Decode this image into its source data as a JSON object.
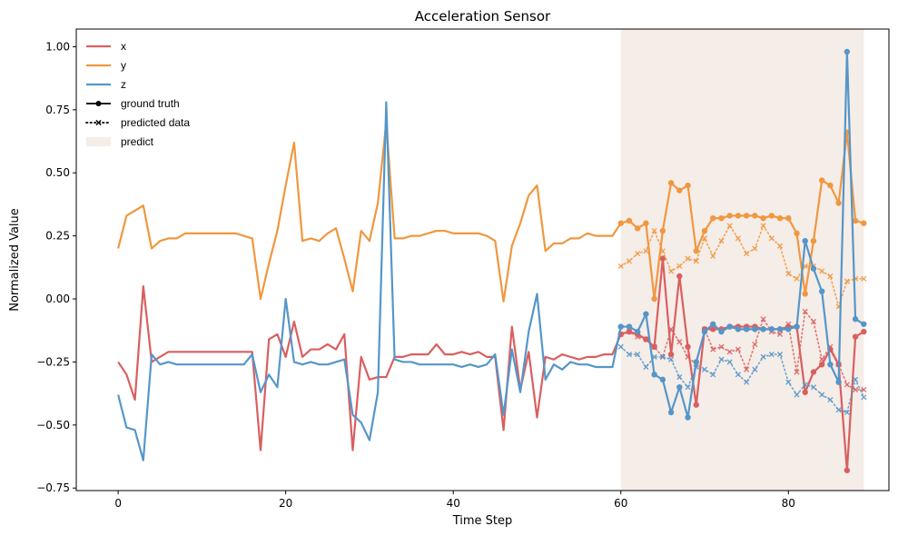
{
  "chart_data": {
    "type": "line",
    "title": "Acceleration Sensor",
    "xlabel": "Time Step",
    "ylabel": "Normalized Value",
    "xlim": [
      -5,
      92
    ],
    "ylim": [
      -0.76,
      1.07
    ],
    "xticks": [
      0,
      20,
      40,
      60,
      80
    ],
    "yticks": [
      -0.75,
      -0.5,
      -0.25,
      0.0,
      0.25,
      0.5,
      0.75,
      1.0
    ],
    "xtick_labels": [
      "0",
      "20",
      "40",
      "60",
      "80"
    ],
    "ytick_labels": [
      "−0.75",
      "−0.50",
      "−0.25",
      "0.00",
      "0.25",
      "0.50",
      "0.75",
      "1.00"
    ],
    "grid": false,
    "legend_position": "top-left",
    "predict_region": {
      "label": "predict",
      "x_start": 60,
      "x_end": 89,
      "color": "#f5ede8"
    },
    "legend": [
      {
        "label": "x",
        "kind": "line",
        "color": "#d95f5f"
      },
      {
        "label": "y",
        "kind": "line",
        "color": "#f0973f"
      },
      {
        "label": "z",
        "kind": "line",
        "color": "#5596c9"
      },
      {
        "label": "ground truth",
        "kind": "solid-dot",
        "color": "#000000"
      },
      {
        "label": "predicted data",
        "kind": "dotted-x",
        "color": "#000000"
      },
      {
        "label": "predict",
        "kind": "patch",
        "color": "#f5ede8"
      }
    ],
    "series": [
      {
        "name": "x",
        "color": "#d95f5f",
        "ground_truth": [
          -0.25,
          -0.3,
          -0.4,
          0.05,
          -0.25,
          -0.23,
          -0.21,
          -0.21,
          -0.21,
          -0.21,
          -0.21,
          -0.21,
          -0.21,
          -0.21,
          -0.21,
          -0.21,
          -0.21,
          -0.6,
          -0.16,
          -0.14,
          -0.23,
          -0.09,
          -0.23,
          -0.2,
          -0.2,
          -0.18,
          -0.2,
          -0.14,
          -0.6,
          -0.23,
          -0.32,
          -0.31,
          -0.31,
          -0.23,
          -0.23,
          -0.22,
          -0.22,
          -0.22,
          -0.18,
          -0.22,
          -0.22,
          -0.21,
          -0.22,
          -0.21,
          -0.23,
          -0.23,
          -0.52,
          -0.11,
          -0.36,
          -0.21,
          -0.47,
          -0.23,
          -0.24,
          -0.22,
          -0.23,
          -0.24,
          -0.23,
          -0.23,
          -0.22,
          -0.22,
          -0.14,
          -0.13,
          -0.14,
          -0.16,
          -0.19,
          0.16,
          -0.22,
          0.09,
          -0.19,
          -0.42,
          -0.12,
          -0.12,
          -0.12,
          -0.11,
          -0.11,
          -0.11,
          -0.11,
          -0.12,
          -0.12,
          -0.12,
          -0.11,
          -0.11,
          -0.37,
          -0.29,
          -0.26,
          -0.2,
          -0.26,
          -0.68,
          -0.15,
          -0.13
        ],
        "predicted": [
          -0.14,
          -0.13,
          -0.15,
          -0.16,
          -0.19,
          -0.23,
          -0.12,
          -0.17,
          -0.23,
          -0.26,
          -0.12,
          -0.2,
          -0.19,
          -0.21,
          -0.2,
          -0.28,
          -0.18,
          -0.08,
          -0.13,
          -0.14,
          -0.1,
          -0.29,
          -0.05,
          -0.09,
          -0.24,
          -0.19,
          -0.26,
          -0.34,
          -0.36,
          -0.36
        ]
      },
      {
        "name": "y",
        "color": "#f0973f",
        "ground_truth": [
          0.2,
          0.33,
          0.35,
          0.37,
          0.2,
          0.23,
          0.24,
          0.24,
          0.26,
          0.26,
          0.26,
          0.26,
          0.26,
          0.26,
          0.26,
          0.25,
          0.24,
          0.0,
          0.14,
          0.27,
          0.45,
          0.62,
          0.23,
          0.24,
          0.23,
          0.26,
          0.28,
          0.16,
          0.03,
          0.27,
          0.23,
          0.38,
          0.7,
          0.24,
          0.24,
          0.25,
          0.25,
          0.26,
          0.27,
          0.27,
          0.26,
          0.26,
          0.26,
          0.26,
          0.25,
          0.23,
          -0.01,
          0.21,
          0.3,
          0.41,
          0.45,
          0.19,
          0.22,
          0.22,
          0.24,
          0.24,
          0.26,
          0.25,
          0.25,
          0.25,
          0.3,
          0.31,
          0.28,
          0.3,
          0.0,
          0.27,
          0.46,
          0.43,
          0.45,
          0.19,
          0.27,
          0.32,
          0.32,
          0.33,
          0.33,
          0.33,
          0.33,
          0.32,
          0.33,
          0.32,
          0.32,
          0.26,
          0.02,
          0.23,
          0.47,
          0.45,
          0.38,
          0.66,
          0.31,
          0.3
        ],
        "predicted": [
          0.13,
          0.15,
          0.18,
          0.19,
          0.27,
          0.19,
          0.11,
          0.13,
          0.16,
          0.15,
          0.24,
          0.17,
          0.23,
          0.29,
          0.24,
          0.18,
          0.2,
          0.29,
          0.24,
          0.21,
          0.1,
          0.08,
          0.13,
          0.13,
          0.11,
          0.09,
          -0.03,
          0.07,
          0.08,
          0.08
        ]
      },
      {
        "name": "z",
        "color": "#5596c9",
        "ground_truth": [
          -0.38,
          -0.51,
          -0.52,
          -0.64,
          -0.22,
          -0.26,
          -0.25,
          -0.26,
          -0.26,
          -0.26,
          -0.26,
          -0.26,
          -0.26,
          -0.26,
          -0.26,
          -0.26,
          -0.22,
          -0.37,
          -0.3,
          -0.35,
          0.0,
          -0.25,
          -0.26,
          -0.25,
          -0.26,
          -0.26,
          -0.25,
          -0.24,
          -0.46,
          -0.49,
          -0.56,
          -0.37,
          0.78,
          -0.24,
          -0.25,
          -0.25,
          -0.26,
          -0.26,
          -0.26,
          -0.26,
          -0.26,
          -0.27,
          -0.26,
          -0.27,
          -0.26,
          -0.22,
          -0.46,
          -0.2,
          -0.37,
          -0.13,
          0.02,
          -0.32,
          -0.26,
          -0.28,
          -0.25,
          -0.26,
          -0.26,
          -0.27,
          -0.27,
          -0.27,
          -0.11,
          -0.11,
          -0.13,
          -0.06,
          -0.3,
          -0.32,
          -0.45,
          -0.35,
          -0.47,
          -0.25,
          -0.13,
          -0.1,
          -0.13,
          -0.11,
          -0.12,
          -0.12,
          -0.12,
          -0.12,
          -0.12,
          -0.12,
          -0.12,
          -0.11,
          0.23,
          0.12,
          0.03,
          -0.26,
          -0.33,
          0.98,
          -0.08,
          -0.1
        ],
        "predicted": [
          -0.19,
          -0.22,
          -0.22,
          -0.27,
          -0.23,
          -0.23,
          -0.24,
          -0.31,
          -0.35,
          -0.27,
          -0.28,
          -0.3,
          -0.24,
          -0.25,
          -0.3,
          -0.33,
          -0.28,
          -0.23,
          -0.22,
          -0.22,
          -0.33,
          -0.38,
          -0.34,
          -0.35,
          -0.38,
          -0.4,
          -0.44,
          -0.45,
          -0.32,
          -0.39
        ]
      }
    ]
  }
}
